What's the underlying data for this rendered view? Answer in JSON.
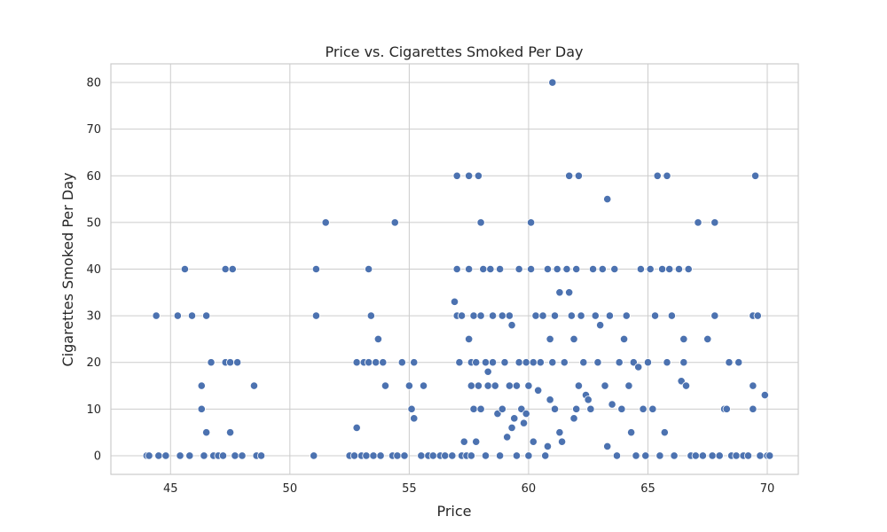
{
  "chart_data": {
    "type": "scatter",
    "title": "Price vs. Cigarettes Smoked Per Day",
    "xlabel": "Price",
    "ylabel": "Cigarettes Smoked Per Day",
    "xlim": [
      42.5,
      71.3
    ],
    "ylim": [
      -4,
      84
    ],
    "xticks": [
      45,
      50,
      55,
      60,
      65,
      70
    ],
    "yticks": [
      0,
      10,
      20,
      30,
      40,
      50,
      60,
      70,
      80
    ],
    "grid": true,
    "marker_color": "#4c72b0",
    "points": [
      [
        44.0,
        0
      ],
      [
        44.1,
        0
      ],
      [
        44.4,
        30
      ],
      [
        44.5,
        0
      ],
      [
        44.8,
        0
      ],
      [
        45.3,
        30
      ],
      [
        45.4,
        0
      ],
      [
        45.6,
        40
      ],
      [
        45.8,
        0
      ],
      [
        45.9,
        30
      ],
      [
        46.3,
        10
      ],
      [
        46.3,
        15
      ],
      [
        46.4,
        0
      ],
      [
        46.5,
        5
      ],
      [
        46.5,
        30
      ],
      [
        46.7,
        20
      ],
      [
        46.8,
        0
      ],
      [
        47.0,
        0
      ],
      [
        47.2,
        0
      ],
      [
        47.3,
        40
      ],
      [
        47.3,
        20
      ],
      [
        47.5,
        20
      ],
      [
        47.5,
        5
      ],
      [
        47.6,
        40
      ],
      [
        47.7,
        0
      ],
      [
        47.8,
        20
      ],
      [
        48.0,
        0
      ],
      [
        48.5,
        15
      ],
      [
        48.6,
        0
      ],
      [
        48.8,
        0
      ],
      [
        51.0,
        0
      ],
      [
        51.1,
        40
      ],
      [
        51.1,
        30
      ],
      [
        51.5,
        50
      ],
      [
        52.5,
        0
      ],
      [
        52.7,
        0
      ],
      [
        52.8,
        20
      ],
      [
        52.8,
        6
      ],
      [
        53.0,
        0
      ],
      [
        53.1,
        20
      ],
      [
        53.2,
        0
      ],
      [
        53.3,
        40
      ],
      [
        53.3,
        20
      ],
      [
        53.4,
        30
      ],
      [
        53.5,
        0
      ],
      [
        53.6,
        20
      ],
      [
        53.7,
        25
      ],
      [
        53.8,
        0
      ],
      [
        53.9,
        20
      ],
      [
        54.0,
        15
      ],
      [
        54.3,
        0
      ],
      [
        54.4,
        50
      ],
      [
        54.5,
        0
      ],
      [
        54.7,
        20
      ],
      [
        54.8,
        0
      ],
      [
        55.0,
        15
      ],
      [
        55.1,
        10
      ],
      [
        55.2,
        20
      ],
      [
        55.2,
        8
      ],
      [
        55.5,
        0
      ],
      [
        55.6,
        15
      ],
      [
        55.8,
        0
      ],
      [
        56.0,
        0
      ],
      [
        56.3,
        0
      ],
      [
        56.5,
        0
      ],
      [
        56.8,
        0
      ],
      [
        56.9,
        33
      ],
      [
        57.0,
        60
      ],
      [
        57.0,
        30
      ],
      [
        57.0,
        40
      ],
      [
        57.1,
        20
      ],
      [
        57.2,
        0
      ],
      [
        57.2,
        30
      ],
      [
        57.3,
        3
      ],
      [
        57.4,
        0
      ],
      [
        57.5,
        60
      ],
      [
        57.5,
        25
      ],
      [
        57.5,
        40
      ],
      [
        57.6,
        20
      ],
      [
        57.6,
        15
      ],
      [
        57.6,
        0
      ],
      [
        57.7,
        10
      ],
      [
        57.7,
        30
      ],
      [
        57.8,
        3
      ],
      [
        57.8,
        20
      ],
      [
        57.9,
        15
      ],
      [
        57.9,
        60
      ],
      [
        58.0,
        30
      ],
      [
        58.0,
        50
      ],
      [
        58.0,
        10
      ],
      [
        58.1,
        40
      ],
      [
        58.2,
        20
      ],
      [
        58.2,
        0
      ],
      [
        58.3,
        18
      ],
      [
        58.3,
        15
      ],
      [
        58.4,
        40
      ],
      [
        58.5,
        30
      ],
      [
        58.5,
        20
      ],
      [
        58.6,
        15
      ],
      [
        58.7,
        9
      ],
      [
        58.8,
        0
      ],
      [
        58.8,
        40
      ],
      [
        58.9,
        30
      ],
      [
        58.9,
        10
      ],
      [
        59.0,
        20
      ],
      [
        59.1,
        4
      ],
      [
        59.2,
        15
      ],
      [
        59.2,
        30
      ],
      [
        59.3,
        28
      ],
      [
        59.3,
        6
      ],
      [
        59.4,
        8
      ],
      [
        59.5,
        15
      ],
      [
        59.5,
        0
      ],
      [
        59.6,
        40
      ],
      [
        59.6,
        20
      ],
      [
        59.7,
        10
      ],
      [
        59.8,
        7
      ],
      [
        59.9,
        20
      ],
      [
        59.9,
        9
      ],
      [
        60.0,
        15
      ],
      [
        60.0,
        0
      ],
      [
        60.1,
        50
      ],
      [
        60.1,
        40
      ],
      [
        60.2,
        20
      ],
      [
        60.2,
        3
      ],
      [
        60.3,
        30
      ],
      [
        60.4,
        14
      ],
      [
        60.5,
        20
      ],
      [
        60.6,
        30
      ],
      [
        60.7,
        0
      ],
      [
        60.8,
        40
      ],
      [
        60.8,
        2
      ],
      [
        60.9,
        25
      ],
      [
        60.9,
        12
      ],
      [
        61.0,
        80
      ],
      [
        61.0,
        20
      ],
      [
        61.1,
        30
      ],
      [
        61.1,
        10
      ],
      [
        61.2,
        40
      ],
      [
        61.3,
        35
      ],
      [
        61.3,
        5
      ],
      [
        61.4,
        3
      ],
      [
        61.5,
        20
      ],
      [
        61.6,
        40
      ],
      [
        61.7,
        35
      ],
      [
        61.7,
        60
      ],
      [
        61.8,
        30
      ],
      [
        61.9,
        25
      ],
      [
        61.9,
        8
      ],
      [
        62.0,
        40
      ],
      [
        62.0,
        10
      ],
      [
        62.1,
        60
      ],
      [
        62.1,
        15
      ],
      [
        62.2,
        30
      ],
      [
        62.3,
        20
      ],
      [
        62.4,
        13
      ],
      [
        62.5,
        12
      ],
      [
        62.6,
        10
      ],
      [
        62.7,
        40
      ],
      [
        62.8,
        30
      ],
      [
        62.9,
        20
      ],
      [
        63.0,
        28
      ],
      [
        63.1,
        40
      ],
      [
        63.2,
        15
      ],
      [
        63.3,
        55
      ],
      [
        63.3,
        2
      ],
      [
        63.4,
        30
      ],
      [
        63.5,
        11
      ],
      [
        63.6,
        40
      ],
      [
        63.7,
        0
      ],
      [
        63.8,
        20
      ],
      [
        63.9,
        10
      ],
      [
        64.0,
        25
      ],
      [
        64.1,
        30
      ],
      [
        64.2,
        15
      ],
      [
        64.3,
        5
      ],
      [
        64.4,
        20
      ],
      [
        64.5,
        0
      ],
      [
        64.6,
        19
      ],
      [
        64.7,
        40
      ],
      [
        64.8,
        10
      ],
      [
        64.9,
        0
      ],
      [
        65.0,
        20
      ],
      [
        65.1,
        40
      ],
      [
        65.2,
        10
      ],
      [
        65.3,
        30
      ],
      [
        65.4,
        60
      ],
      [
        65.5,
        0
      ],
      [
        65.6,
        40
      ],
      [
        65.7,
        5
      ],
      [
        65.8,
        60
      ],
      [
        65.8,
        20
      ],
      [
        65.9,
        40
      ],
      [
        66.0,
        30
      ],
      [
        66.1,
        0
      ],
      [
        66.3,
        40
      ],
      [
        66.4,
        16
      ],
      [
        66.5,
        25
      ],
      [
        66.5,
        20
      ],
      [
        66.6,
        15
      ],
      [
        66.7,
        40
      ],
      [
        66.8,
        0
      ],
      [
        67.0,
        0
      ],
      [
        67.1,
        50
      ],
      [
        67.3,
        0
      ],
      [
        67.5,
        25
      ],
      [
        67.7,
        0
      ],
      [
        67.8,
        50
      ],
      [
        67.8,
        30
      ],
      [
        68.0,
        0
      ],
      [
        68.2,
        10
      ],
      [
        68.3,
        10
      ],
      [
        68.4,
        20
      ],
      [
        68.5,
        0
      ],
      [
        68.7,
        0
      ],
      [
        68.8,
        20
      ],
      [
        69.0,
        0
      ],
      [
        69.2,
        0
      ],
      [
        69.4,
        15
      ],
      [
        69.4,
        10
      ],
      [
        69.4,
        30
      ],
      [
        69.5,
        60
      ],
      [
        69.6,
        30
      ],
      [
        69.7,
        0
      ],
      [
        69.9,
        13
      ],
      [
        70.0,
        0
      ],
      [
        70.1,
        0
      ]
    ]
  }
}
